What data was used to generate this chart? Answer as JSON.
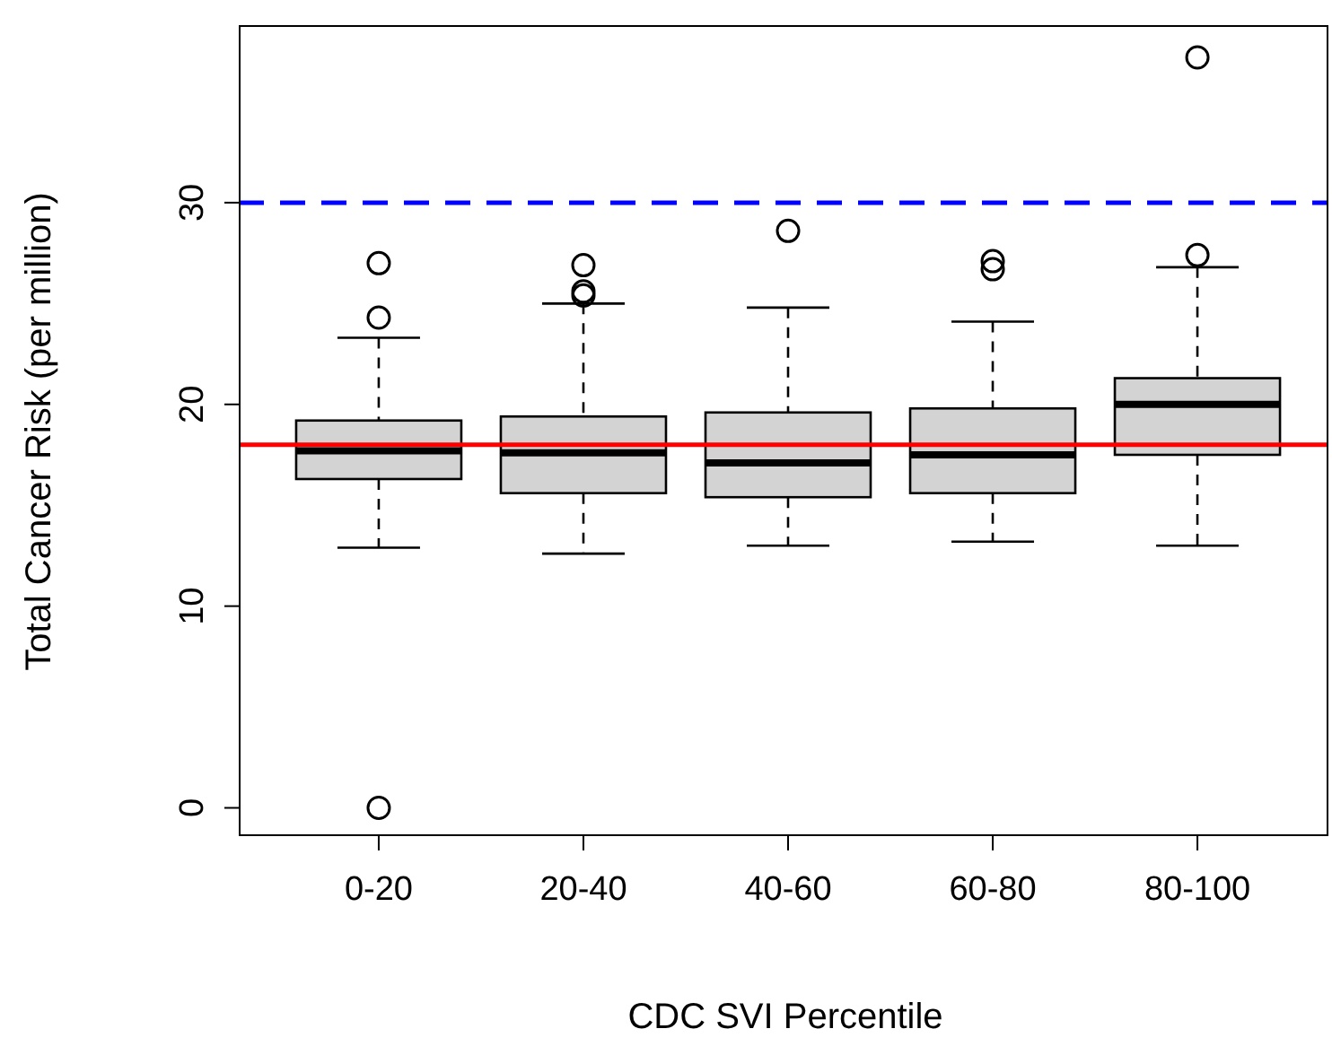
{
  "chart_data": {
    "type": "box",
    "xlabel": "CDC SVI Percentile",
    "ylabel": "Total Cancer Risk (per million)",
    "categories": [
      "0-20",
      "20-40",
      "40-60",
      "60-80",
      "80-100"
    ],
    "color": "#d3d3d3",
    "boxes": [
      {
        "low": 12.9,
        "q1": 16.3,
        "median": 17.7,
        "q3": 19.2,
        "high": 23.3,
        "outliers": [
          27.0,
          24.3,
          0
        ]
      },
      {
        "low": 12.6,
        "q1": 15.6,
        "median": 17.6,
        "q3": 19.4,
        "high": 25.0,
        "outliers": [
          26.9,
          25.6,
          25.4
        ]
      },
      {
        "low": 13.0,
        "q1": 15.4,
        "median": 17.1,
        "q3": 19.6,
        "high": 24.8,
        "outliers": [
          28.6
        ]
      },
      {
        "low": 13.2,
        "q1": 15.6,
        "median": 17.5,
        "q3": 19.8,
        "high": 24.1,
        "outliers": [
          27.1,
          26.7
        ]
      },
      {
        "low": 13.0,
        "q1": 17.5,
        "median": 20.0,
        "q3": 21.3,
        "high": 26.8,
        "outliers": [
          27.4,
          37.2
        ]
      }
    ],
    "ylim": [
      -1.4,
      38.8
    ],
    "yticks": [
      0,
      10,
      20,
      30
    ],
    "ref_lines": [
      {
        "axis": "y",
        "value": 30,
        "color": "#0000ff",
        "line_style": "dashed"
      },
      {
        "axis": "y",
        "value": 18,
        "color": "#ff0000",
        "line_style": "solid"
      }
    ]
  }
}
